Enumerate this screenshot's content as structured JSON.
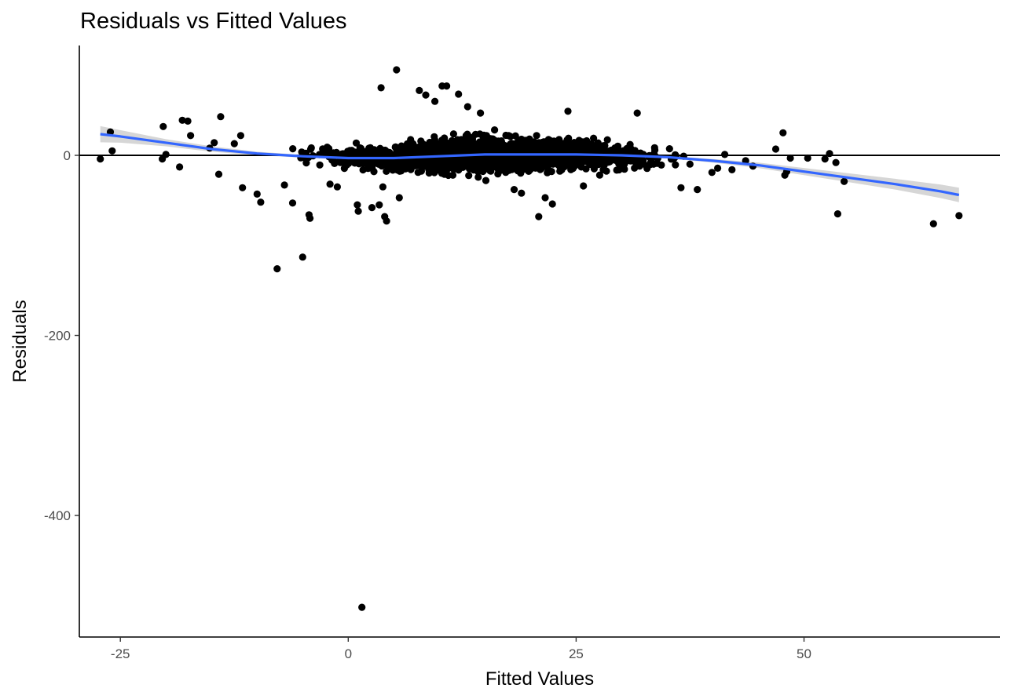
{
  "chart_data": {
    "type": "scatter",
    "title": "Residuals vs Fitted Values",
    "xlabel": "Fitted Values",
    "ylabel": "Residuals",
    "xlim": [
      -29.5,
      71.5
    ],
    "ylim": [
      -535,
      122
    ],
    "x_ticks": [
      -25,
      0,
      25,
      50
    ],
    "y_ticks": [
      -400,
      -200,
      0
    ],
    "reference_line_y": 0,
    "grid": false,
    "colors": {
      "points": "#000000",
      "smooth": "#3366ff",
      "band": "#c8c8c8",
      "axis": "#000000"
    },
    "series": [
      {
        "name": "",
        "kind": "points",
        "outliers": [
          [
            -27.2,
            -4
          ],
          [
            -26.1,
            26
          ],
          [
            -25.9,
            5
          ],
          [
            -20.3,
            32
          ],
          [
            -20.4,
            -4
          ],
          [
            -20.0,
            1
          ],
          [
            -18.5,
            -13
          ],
          [
            -18.2,
            39
          ],
          [
            -17.6,
            38
          ],
          [
            -17.3,
            22
          ],
          [
            -15.2,
            8
          ],
          [
            -14.7,
            14
          ],
          [
            -14.2,
            -21
          ],
          [
            -14.0,
            43
          ],
          [
            -12.5,
            13
          ],
          [
            -11.8,
            22
          ],
          [
            -11.6,
            -36
          ],
          [
            -10.0,
            -43
          ],
          [
            -9.6,
            -52
          ],
          [
            -7.8,
            -126
          ],
          [
            -7.0,
            -33
          ],
          [
            -6.1,
            -53
          ],
          [
            -5.0,
            -113
          ],
          [
            -4.3,
            -66
          ],
          [
            -4.2,
            -70
          ],
          [
            -2.0,
            -32
          ],
          [
            -1.2,
            -35
          ],
          [
            1.0,
            -55
          ],
          [
            1.1,
            -62
          ],
          [
            1.5,
            -502
          ],
          [
            2.6,
            -58
          ],
          [
            3.4,
            -55
          ],
          [
            3.6,
            75
          ],
          [
            3.8,
            -35
          ],
          [
            4.0,
            -68
          ],
          [
            4.2,
            -73
          ],
          [
            5.3,
            95
          ],
          [
            5.6,
            -47
          ],
          [
            7.8,
            72
          ],
          [
            8.5,
            67
          ],
          [
            9.5,
            60
          ],
          [
            10.3,
            77
          ],
          [
            10.8,
            77
          ],
          [
            12.1,
            68
          ],
          [
            13.1,
            54
          ],
          [
            14.5,
            47
          ],
          [
            15.1,
            -28
          ],
          [
            18.2,
            -38
          ],
          [
            19.0,
            -42
          ],
          [
            20.9,
            -68
          ],
          [
            21.6,
            -47
          ],
          [
            22.4,
            -54
          ],
          [
            24.1,
            49
          ],
          [
            25.8,
            -34
          ],
          [
            31.7,
            47
          ],
          [
            36.5,
            -36
          ],
          [
            38.3,
            -38
          ],
          [
            39.9,
            -19
          ],
          [
            41.3,
            1
          ],
          [
            42.1,
            -16
          ],
          [
            43.6,
            -6
          ],
          [
            44.4,
            -12
          ],
          [
            46.9,
            7
          ],
          [
            47.7,
            25
          ],
          [
            47.9,
            -22
          ],
          [
            48.1,
            -18
          ],
          [
            48.5,
            -3
          ],
          [
            50.4,
            -3
          ],
          [
            52.3,
            -4
          ],
          [
            52.8,
            2
          ],
          [
            53.5,
            -8
          ],
          [
            53.7,
            -65
          ],
          [
            54.4,
            -29
          ],
          [
            64.2,
            -76
          ],
          [
            67.0,
            -67
          ]
        ]
      },
      {
        "name": "",
        "kind": "smooth",
        "x": [
          -27.2,
          -25,
          -20,
          -15,
          -10,
          -5,
          0,
          5,
          10,
          15,
          20,
          25,
          30,
          35,
          40,
          45,
          50,
          55,
          60,
          65,
          67.0
        ],
        "y": [
          23.5,
          21,
          14,
          7,
          2,
          -1,
          -3,
          -3,
          -1,
          1,
          1,
          1,
          0,
          -2,
          -6,
          -11,
          -18,
          -25,
          -32,
          -40,
          -44
        ],
        "band_halfwidth": [
          9,
          7,
          4,
          3,
          2,
          1.5,
          1,
          1,
          1,
          1,
          1,
          1,
          1,
          1.5,
          2,
          3,
          4,
          5,
          6,
          7.5,
          8
        ]
      }
    ]
  }
}
